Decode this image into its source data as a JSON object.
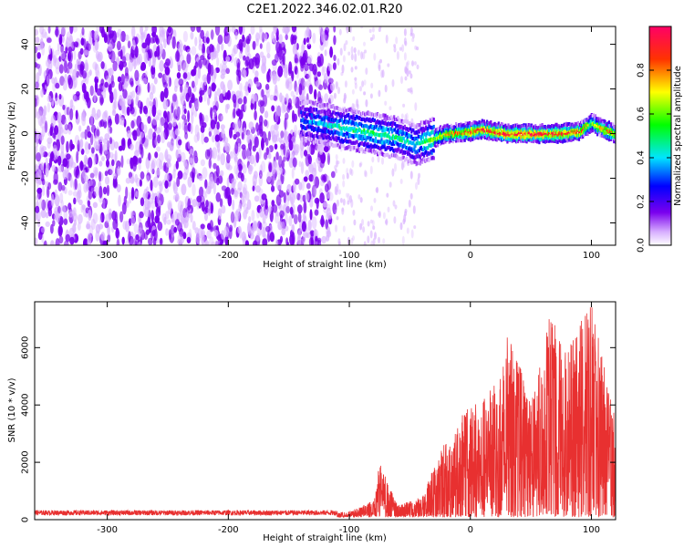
{
  "title": "C2E1.2022.346.02.01.R20",
  "colors": {
    "noise": "#7a00ee",
    "snr_line": "#e83030",
    "axis": "#000000"
  },
  "chart_data": [
    {
      "type": "heatmap",
      "name": "spectrogram",
      "xlabel": "Height of straight line (km)",
      "ylabel": "Frequency (Hz)",
      "xlim": [
        -360,
        120
      ],
      "ylim": [
        -50,
        48
      ],
      "x_ticks": [
        -300,
        -200,
        -100,
        0,
        100
      ],
      "y_ticks": [
        -40,
        -20,
        0,
        20,
        40
      ],
      "colorbar": {
        "label": "Normalized spectral amplitude",
        "range": [
          0,
          1
        ],
        "ticks": [
          "0.0",
          "0.2",
          "0.4",
          "0.6",
          "0.8"
        ],
        "tick_values": [
          0.0,
          0.2,
          0.4,
          0.6,
          0.8
        ]
      },
      "signal_trace": {
        "x": [
          -140,
          -120,
          -100,
          -80,
          -60,
          -45,
          -35,
          -20,
          0,
          10,
          30,
          50,
          70,
          90,
          100,
          110,
          120
        ],
        "freq": [
          6,
          4,
          2,
          0,
          -2,
          -5,
          -3,
          0,
          1,
          2,
          0,
          0,
          0,
          1,
          5,
          2,
          0
        ],
        "amplitude": [
          0.3,
          0.4,
          0.45,
          0.48,
          0.45,
          0.4,
          0.55,
          0.75,
          0.85,
          0.9,
          0.95,
          0.95,
          0.9,
          0.9,
          0.6,
          0.85,
          0.8
        ]
      }
    },
    {
      "type": "line",
      "name": "snr",
      "xlabel": "Height of straight line (km)",
      "ylabel": "SNR (10 * v/v)",
      "xlim": [
        -360,
        120
      ],
      "ylim": [
        0,
        7600
      ],
      "x_ticks": [
        -300,
        -200,
        -100,
        0,
        100
      ],
      "y_ticks": [
        0,
        2000,
        4000,
        6000
      ],
      "envelope": {
        "x": [
          -360,
          -300,
          -200,
          -120,
          -100,
          -80,
          -75,
          -60,
          -40,
          -25,
          -10,
          0,
          10,
          25,
          30,
          40,
          50,
          60,
          65,
          80,
          90,
          100,
          110,
          120
        ],
        "y": [
          200,
          200,
          200,
          200,
          300,
          650,
          2000,
          500,
          800,
          2500,
          3500,
          4000,
          4200,
          5200,
          6500,
          5500,
          4000,
          5800,
          7200,
          6000,
          6800,
          7600,
          5500,
          3500
        ]
      }
    }
  ]
}
